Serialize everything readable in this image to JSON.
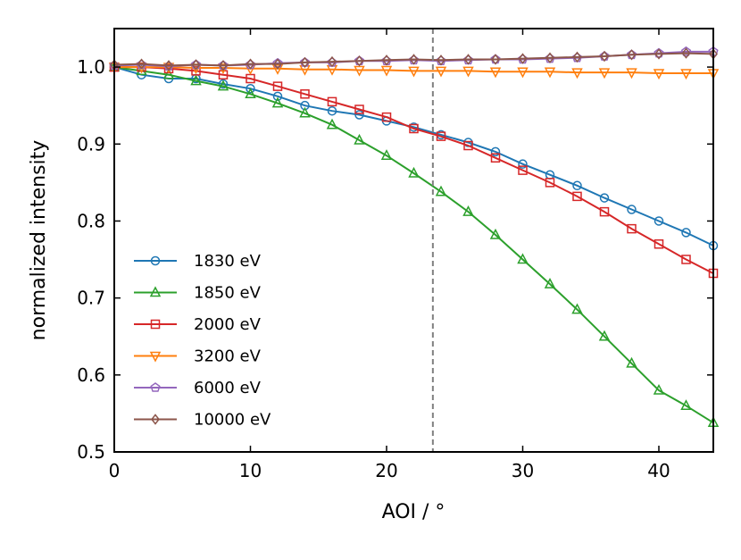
{
  "chart_data": {
    "type": "line",
    "title": "",
    "xlabel": "AOI / °",
    "ylabel": "normalized intensity",
    "xlim": [
      0,
      44
    ],
    "ylim": [
      0.5,
      1.05
    ],
    "xticks": [
      0,
      10,
      20,
      30,
      40
    ],
    "xtick_labels": [
      "0",
      "10",
      "20",
      "30",
      "40"
    ],
    "yticks": [
      0.5,
      0.6,
      0.7,
      0.8,
      0.9,
      1.0
    ],
    "ytick_labels": [
      "0.5",
      "0.6",
      "0.7",
      "0.8",
      "0.9",
      "1.0"
    ],
    "vline": {
      "x": 23.4,
      "style": "dashed",
      "color": "#808080"
    },
    "legend_position": "lower-left",
    "grid": false,
    "series": [
      {
        "name": "1830 eV",
        "color": "#1f77b4",
        "marker": "circle",
        "x": [
          0,
          2,
          4,
          6,
          8,
          10,
          12,
          14,
          16,
          18,
          20,
          22,
          24,
          26,
          28,
          30,
          32,
          34,
          36,
          38,
          40,
          42,
          44
        ],
        "values": [
          1.0,
          0.99,
          0.985,
          0.985,
          0.978,
          0.972,
          0.962,
          0.95,
          0.943,
          0.938,
          0.93,
          0.922,
          0.912,
          0.902,
          0.89,
          0.874,
          0.86,
          0.846,
          0.83,
          0.815,
          0.8,
          0.785,
          0.768
        ]
      },
      {
        "name": "1850 eV",
        "color": "#2ca02c",
        "marker": "triangle-up",
        "x": [
          0,
          2,
          4,
          6,
          8,
          10,
          12,
          14,
          16,
          18,
          20,
          22,
          24,
          26,
          28,
          30,
          32,
          34,
          36,
          38,
          40,
          42,
          44
        ],
        "values": [
          1.0,
          0.995,
          0.99,
          0.982,
          0.975,
          0.965,
          0.953,
          0.94,
          0.925,
          0.905,
          0.885,
          0.862,
          0.838,
          0.812,
          0.782,
          0.75,
          0.718,
          0.685,
          0.65,
          0.615,
          0.58,
          0.56,
          0.538
        ]
      },
      {
        "name": "2000 eV",
        "color": "#d62728",
        "marker": "square",
        "x": [
          0,
          2,
          4,
          6,
          8,
          10,
          12,
          14,
          16,
          18,
          20,
          22,
          24,
          26,
          28,
          30,
          32,
          34,
          36,
          38,
          40,
          42,
          44
        ],
        "values": [
          1.0,
          1.0,
          0.998,
          0.995,
          0.99,
          0.985,
          0.975,
          0.965,
          0.955,
          0.945,
          0.935,
          0.92,
          0.91,
          0.898,
          0.882,
          0.866,
          0.85,
          0.832,
          0.812,
          0.79,
          0.77,
          0.75,
          0.732
        ]
      },
      {
        "name": "3200 eV",
        "color": "#ff7f0e",
        "marker": "triangle-down",
        "x": [
          0,
          2,
          4,
          6,
          8,
          10,
          12,
          14,
          16,
          18,
          20,
          22,
          24,
          26,
          28,
          30,
          32,
          34,
          36,
          38,
          40,
          42,
          44
        ],
        "values": [
          1.0,
          1.0,
          1.0,
          0.999,
          0.999,
          0.998,
          0.998,
          0.997,
          0.997,
          0.996,
          0.996,
          0.995,
          0.995,
          0.995,
          0.994,
          0.994,
          0.994,
          0.993,
          0.993,
          0.993,
          0.992,
          0.992,
          0.992
        ]
      },
      {
        "name": "6000 eV",
        "color": "#9467bd",
        "marker": "pentagon",
        "x": [
          0,
          2,
          4,
          6,
          8,
          10,
          12,
          14,
          16,
          18,
          20,
          22,
          24,
          26,
          28,
          30,
          32,
          34,
          36,
          38,
          40,
          42,
          44
        ],
        "values": [
          1.002,
          1.003,
          1.001,
          1.003,
          1.002,
          1.003,
          1.005,
          1.006,
          1.006,
          1.008,
          1.008,
          1.009,
          1.008,
          1.009,
          1.01,
          1.01,
          1.011,
          1.012,
          1.014,
          1.016,
          1.018,
          1.02,
          1.02
        ]
      },
      {
        "name": "10000 eV",
        "color": "#8c564b",
        "marker": "diamond",
        "x": [
          0,
          2,
          4,
          6,
          8,
          10,
          12,
          14,
          16,
          18,
          20,
          22,
          24,
          26,
          28,
          30,
          32,
          34,
          36,
          38,
          40,
          42,
          44
        ],
        "values": [
          1.003,
          1.004,
          1.002,
          1.003,
          1.002,
          1.004,
          1.004,
          1.006,
          1.007,
          1.008,
          1.009,
          1.01,
          1.009,
          1.01,
          1.01,
          1.011,
          1.012,
          1.013,
          1.014,
          1.016,
          1.017,
          1.018,
          1.017
        ]
      }
    ]
  }
}
